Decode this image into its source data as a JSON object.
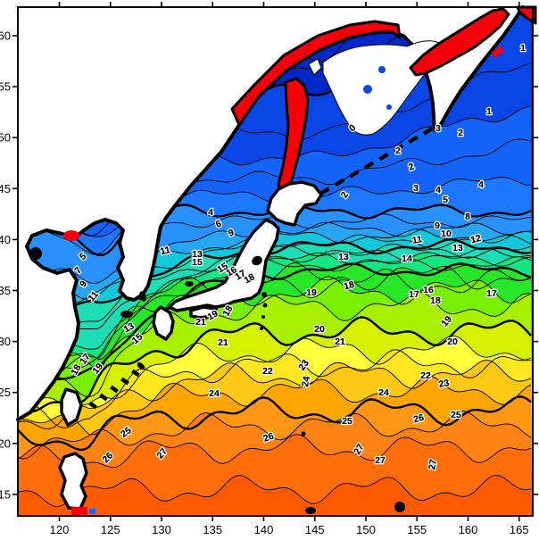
{
  "figure": {
    "kind": "sea-surface-temperature contour map",
    "region": "Northwest Pacific (Japan, Sea of Okhotsk, East China Sea)",
    "background": "#ffffff",
    "frame_color": "#000000"
  },
  "axes": {
    "x": {
      "ticks": [
        120,
        125,
        130,
        135,
        140,
        145,
        150,
        155,
        160,
        165
      ]
    },
    "y": {
      "ticks": [
        15,
        20,
        25,
        30,
        35,
        40,
        45,
        50,
        55,
        60
      ]
    }
  },
  "chart_data": {
    "type": "contour",
    "title": "",
    "xlabel": "",
    "ylabel": "",
    "x_range_lon": [
      115.9,
      166.3
    ],
    "y_range_lat": [
      12.7,
      62.8
    ],
    "contour_interval": 1,
    "bold_interval": 5,
    "levels": [
      {
        "v": -2,
        "color": "#0028C8"
      },
      {
        "v": -1,
        "color": "#0028C8"
      },
      {
        "v": 0,
        "color": "#0A46E6"
      },
      {
        "v": 1,
        "color": "#0A46E6"
      },
      {
        "v": 2,
        "color": "#1464FA"
      },
      {
        "v": 3,
        "color": "#1464FA"
      },
      {
        "v": 4,
        "color": "#1E78FF"
      },
      {
        "v": 5,
        "color": "#2891FF"
      },
      {
        "v": 6,
        "color": "#2891FF"
      },
      {
        "v": 7,
        "color": "#28A5F0"
      },
      {
        "v": 8,
        "color": "#14C8DC"
      },
      {
        "v": 9,
        "color": "#14C8DC"
      },
      {
        "v": 10,
        "color": "#1EDCB4"
      },
      {
        "v": 11,
        "color": "#1EDCB4"
      },
      {
        "v": 12,
        "color": "#1EDCB4"
      },
      {
        "v": 13,
        "color": "#14E682"
      },
      {
        "v": 14,
        "color": "#14E682"
      },
      {
        "v": 15,
        "color": "#28E628"
      },
      {
        "v": 16,
        "color": "#28E628"
      },
      {
        "v": 17,
        "color": "#28E628"
      },
      {
        "v": 18,
        "color": "#78F000"
      },
      {
        "v": 19,
        "color": "#A8F000"
      },
      {
        "v": 20,
        "color": "#D7F000"
      },
      {
        "v": 21,
        "color": "#FFFF3C"
      },
      {
        "v": 22,
        "color": "#FFE61E"
      },
      {
        "v": 23,
        "color": "#FFC814"
      },
      {
        "v": 24,
        "color": "#FFA500"
      },
      {
        "v": 25,
        "color": "#FF9614"
      },
      {
        "v": 26,
        "color": "#FF8214"
      },
      {
        "v": 27,
        "color": "#FF6E0A"
      },
      {
        "v": 28,
        "color": "#FF5A00"
      }
    ],
    "isotherm_base_lat": [
      {
        "level": -2,
        "lat": 58.0
      },
      {
        "level": -1,
        "lat": 56.5
      },
      {
        "level": 0,
        "lat": 54.5
      },
      {
        "level": 1,
        "lat": 50.5
      },
      {
        "level": 2,
        "lat": 48.0
      },
      {
        "level": 3,
        "lat": 46.0
      },
      {
        "level": 4,
        "lat": 44.3
      },
      {
        "level": 5,
        "lat": 42.8
      },
      {
        "level": 6,
        "lat": 41.8
      },
      {
        "level": 7,
        "lat": 41.0
      },
      {
        "level": 8,
        "lat": 40.3
      },
      {
        "level": 9,
        "lat": 39.8
      },
      {
        "level": 10,
        "lat": 39.3
      },
      {
        "level": 11,
        "lat": 38.9
      },
      {
        "level": 12,
        "lat": 38.5
      },
      {
        "level": 13,
        "lat": 38.1
      },
      {
        "level": 14,
        "lat": 37.6
      },
      {
        "level": 15,
        "lat": 37.0
      },
      {
        "level": 16,
        "lat": 36.4
      },
      {
        "level": 17,
        "lat": 35.8
      },
      {
        "level": 18,
        "lat": 35.0
      },
      {
        "level": 19,
        "lat": 33.5
      },
      {
        "level": 20,
        "lat": 31.0
      },
      {
        "level": 21,
        "lat": 29.2
      },
      {
        "level": 22,
        "lat": 27.8
      },
      {
        "level": 23,
        "lat": 26.8
      },
      {
        "level": 24,
        "lat": 25.2
      },
      {
        "level": 25,
        "lat": 23.2
      },
      {
        "level": 26,
        "lat": 21.8
      },
      {
        "level": 27,
        "lat": 19.5
      },
      {
        "level": 28,
        "lat": 15.5
      }
    ],
    "contour_labels": [
      [
        0,
        397,
        146,
        -40
      ],
      [
        1,
        586,
        57,
        0
      ],
      [
        1,
        548,
        128,
        0
      ],
      [
        2,
        516,
        152,
        0
      ],
      [
        3,
        491,
        147,
        0
      ],
      [
        2,
        446,
        172,
        0
      ],
      [
        2,
        462,
        190,
        -20
      ],
      [
        3,
        466,
        214,
        0
      ],
      [
        2,
        389,
        220,
        -60
      ],
      [
        4,
        491,
        216,
        0
      ],
      [
        5,
        499,
        227,
        0
      ],
      [
        4,
        539,
        210,
        0
      ],
      [
        8,
        524,
        246,
        0
      ],
      [
        9,
        490,
        256,
        0
      ],
      [
        10,
        500,
        265,
        0
      ],
      [
        11,
        468,
        272,
        -10
      ],
      [
        12,
        534,
        271,
        -15
      ],
      [
        13,
        513,
        281,
        0
      ],
      [
        13,
        385,
        291,
        0
      ],
      [
        14,
        456,
        293,
        0
      ],
      [
        17,
        551,
        332,
        0
      ],
      [
        4,
        236,
        241,
        0
      ],
      [
        6,
        246,
        254,
        -20
      ],
      [
        9,
        260,
        264,
        -20
      ],
      [
        11,
        186,
        284,
        -15
      ],
      [
        13,
        221,
        288,
        0
      ],
      [
        15,
        221,
        297,
        0
      ],
      [
        5,
        95,
        290,
        -40
      ],
      [
        7,
        90,
        305,
        -50
      ],
      [
        9,
        96,
        320,
        -55
      ],
      [
        11,
        107,
        334,
        -50
      ],
      [
        13,
        146,
        370,
        -30
      ],
      [
        15,
        156,
        382,
        -40
      ],
      [
        17,
        98,
        404,
        -55
      ],
      [
        18,
        88,
        416,
        -60
      ],
      [
        19,
        112,
        415,
        -50
      ],
      [
        15,
        251,
        303,
        -30
      ],
      [
        16,
        261,
        307,
        -30
      ],
      [
        17,
        271,
        311,
        -30
      ],
      [
        18,
        281,
        315,
        -30
      ],
      [
        19,
        349,
        331,
        0
      ],
      [
        18,
        392,
        323,
        -15
      ],
      [
        16,
        480,
        328,
        0
      ],
      [
        17,
        464,
        333,
        0
      ],
      [
        18,
        488,
        340,
        0
      ],
      [
        19,
        503,
        362,
        -50
      ],
      [
        18,
        258,
        350,
        -60
      ],
      [
        19,
        240,
        356,
        -30
      ],
      [
        20,
        358,
        372,
        0
      ],
      [
        20,
        507,
        386,
        0
      ],
      [
        21,
        225,
        364,
        0
      ],
      [
        21,
        250,
        387,
        0
      ],
      [
        21,
        381,
        386,
        0
      ],
      [
        22,
        300,
        419,
        0
      ],
      [
        22,
        477,
        424,
        0
      ],
      [
        23,
        343,
        411,
        -55
      ],
      [
        23,
        498,
        433,
        -10
      ],
      [
        24,
        346,
        428,
        -80
      ],
      [
        24,
        240,
        444,
        0
      ],
      [
        24,
        430,
        443,
        0
      ],
      [
        25,
        389,
        475,
        0
      ],
      [
        25,
        511,
        468,
        0
      ],
      [
        25,
        143,
        487,
        -35
      ],
      [
        26,
        302,
        493,
        -20
      ],
      [
        26,
        470,
        472,
        -15
      ],
      [
        26,
        123,
        515,
        -45
      ],
      [
        27,
        184,
        510,
        -50
      ],
      [
        27,
        405,
        505,
        -60
      ],
      [
        27,
        426,
        519,
        0
      ],
      [
        27,
        488,
        521,
        -80
      ]
    ],
    "legend": "none"
  },
  "map_features": {
    "land_fill_white": "#FFFFFF",
    "land_fill_red": "#F5000A",
    "coast_color": "#000000",
    "ice_color": "#FFFFFF",
    "red_lands": [
      "okhotsk-coast-land",
      "sakhalin",
      "kamchatka",
      "ne-corner-land"
    ],
    "white_lands": [
      "mainland-asia",
      "korea",
      "hokkaido",
      "honshu",
      "shikoku",
      "kyushu",
      "taiwan",
      "luzon"
    ],
    "ice": [
      "okhotsk-ice",
      "okhotsk-ice-small"
    ],
    "red_patches": [
      "north-korea-patch",
      "luzon-south-patch",
      "kamchatka-coast-patch"
    ],
    "island_chains": [
      "kuril-islands",
      "ryukyu-islands",
      "izu-islands"
    ],
    "small_islands": [
      "sado",
      "oki",
      "tsushima",
      "jeju",
      "bohai-island",
      "amami",
      "daito",
      "bonin",
      "south-sea-island"
    ]
  }
}
